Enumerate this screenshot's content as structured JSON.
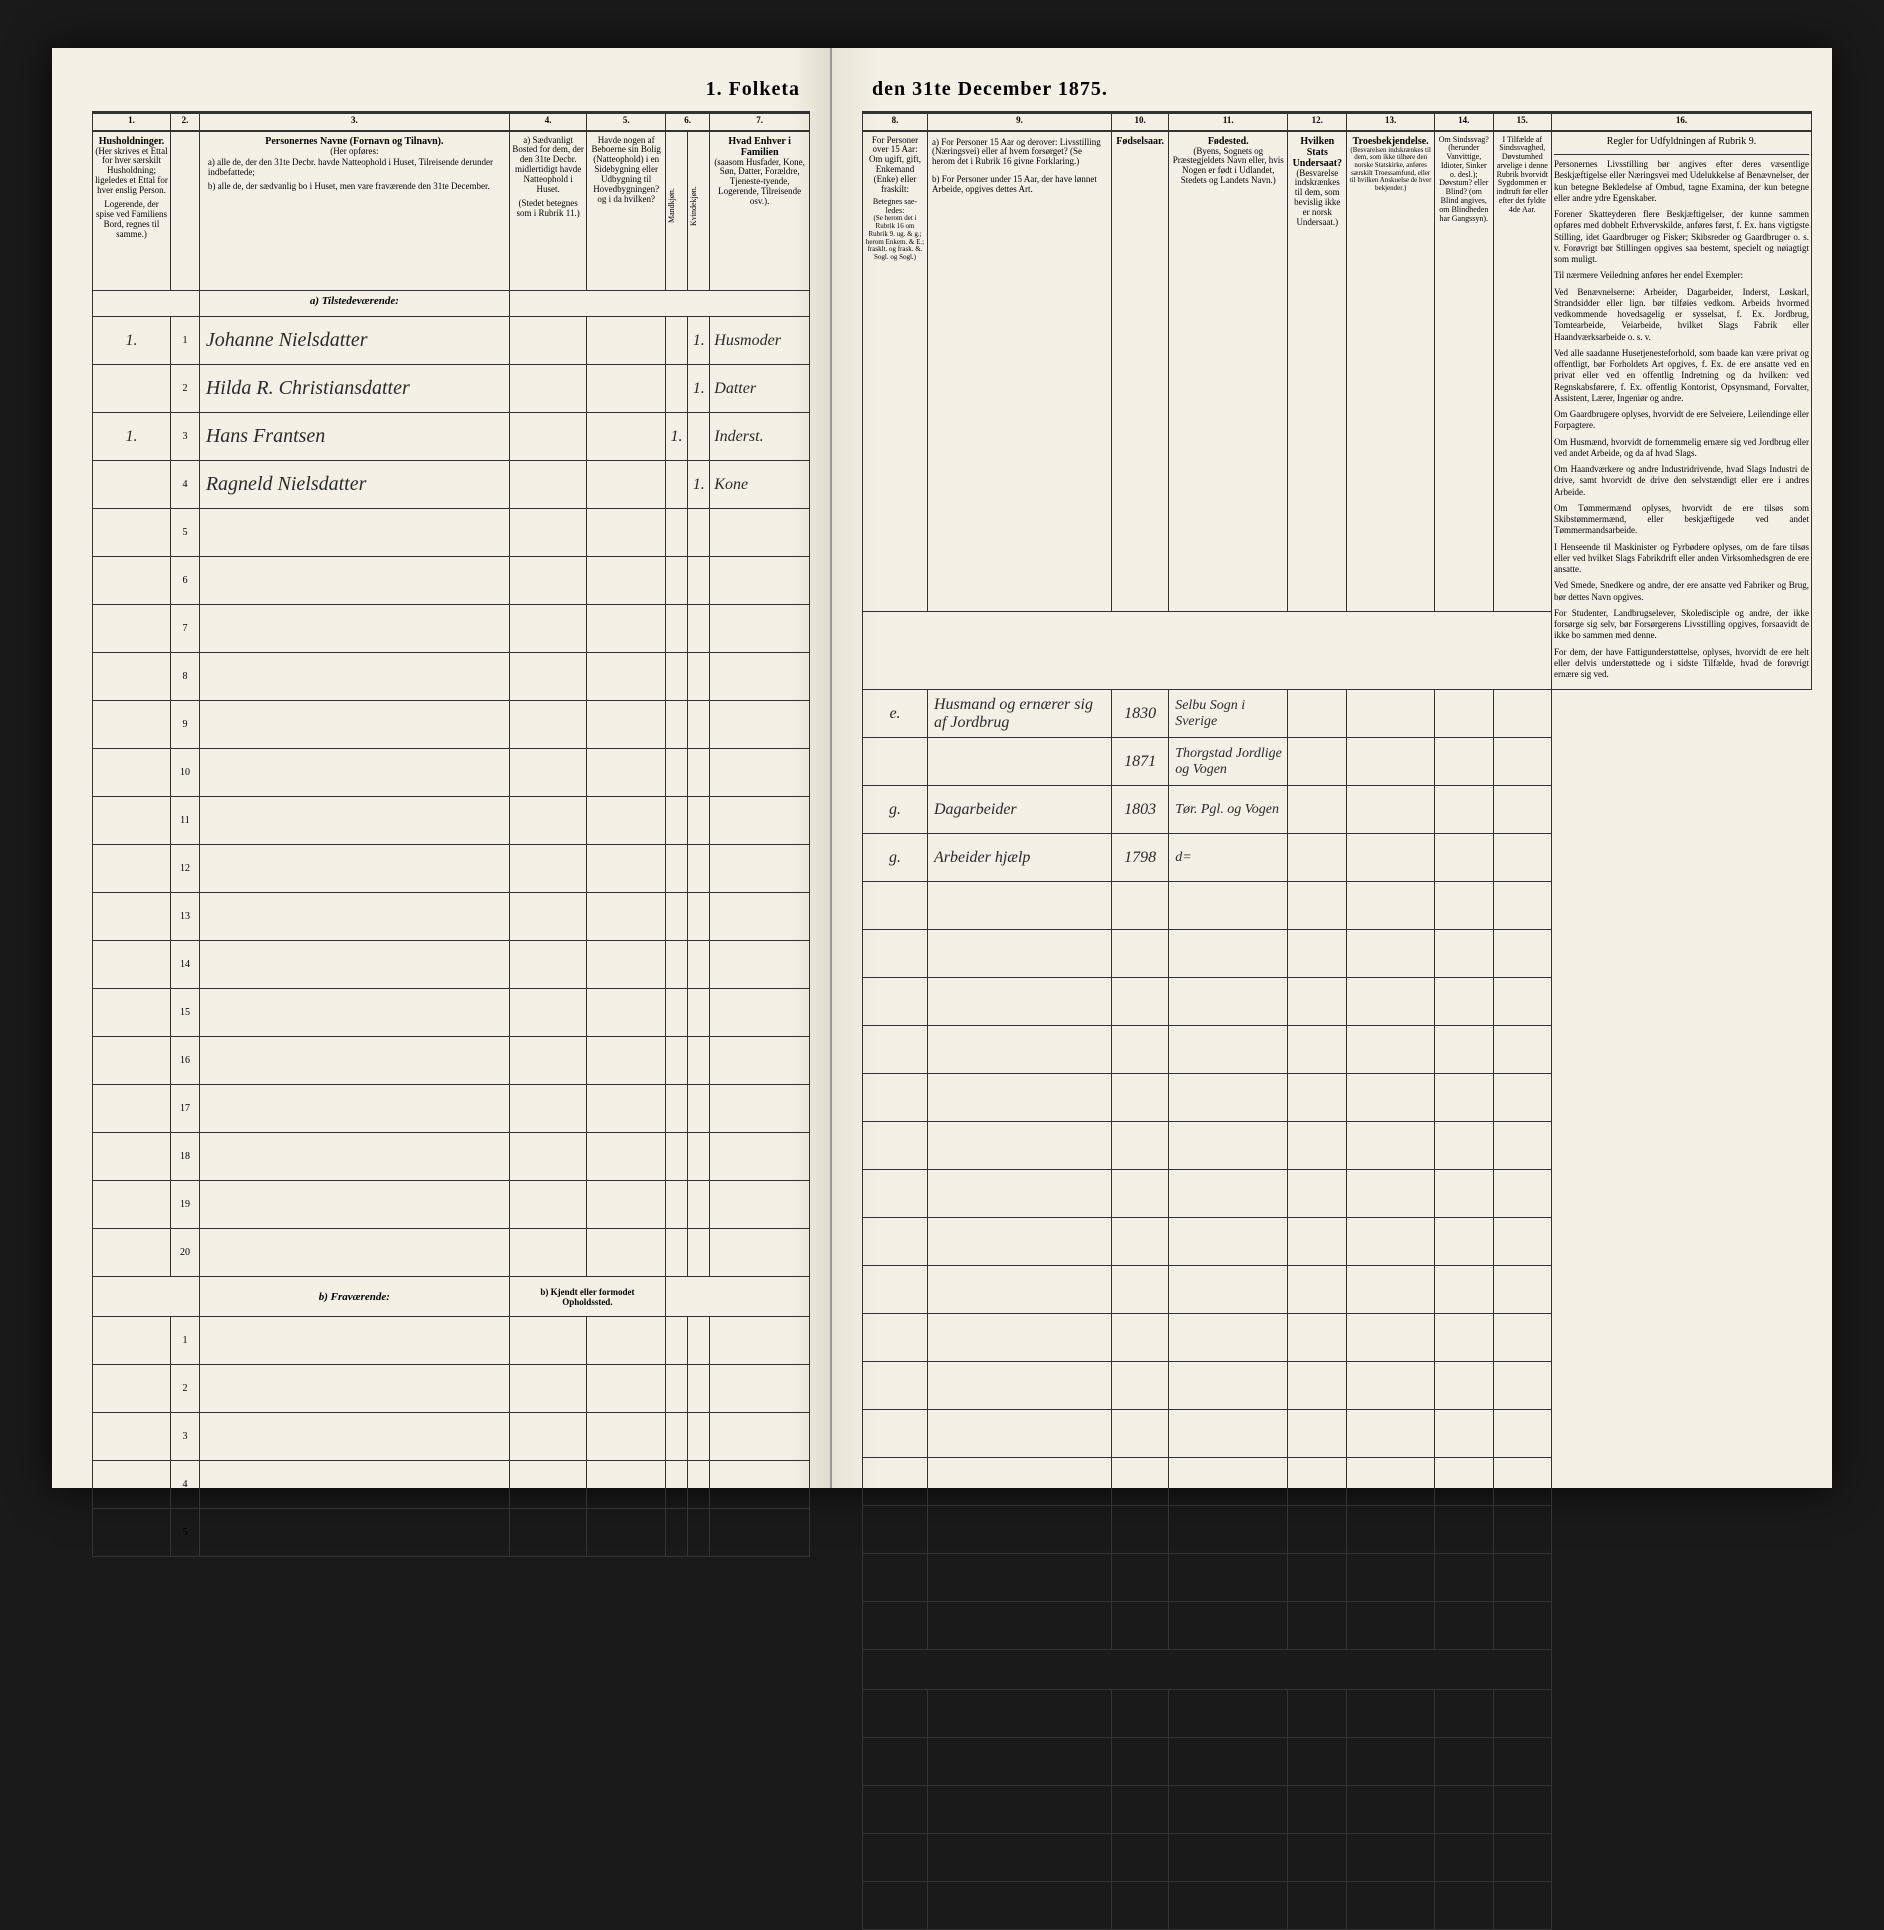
{
  "title_left": "1. Folketa",
  "title_right": "den 31te December 1875.",
  "columns": {
    "c1": "1.",
    "c2": "2.",
    "c3": "3.",
    "c4": "4.",
    "c5": "5.",
    "c6": "6.",
    "c7": "7.",
    "c8": "8.",
    "c9": "9.",
    "c10": "10.",
    "c11": "11.",
    "c12": "12.",
    "c13": "13.",
    "c14": "14.",
    "c15": "15.",
    "c16": "16."
  },
  "headers": {
    "h1": "Husholdninger.",
    "h1b": "(Her skrives et Ettal for hver særskilt Husholdning; ligeledes et Ettal for hver enslig Person.",
    "h1c": "Logerende, der spise ved Familiens Bord, regnes til samme.)",
    "h2": "",
    "h3": "Personernes Navne (Fornavn og Tilnavn).",
    "h3b": "(Her opføres:",
    "h3c": "a) alle de, der den 31te Decbr. havde Natteophold i Huset, Tilreisende derunder indbefattede;",
    "h3d": "b) alle de, der sædvanlig bo i Huset, men vare fraværende den 31te December.",
    "h4": "a) Sædvanligt Bosted for dem, der den 31te Decbr. midlertidigt havde Natteophold i Huset.",
    "h4b": "(Stedet betegnes som i Rubrik 11.)",
    "h5": "Havde nogen af Beboerne sin Bolig (Natteophold) i en Sidebygning eller Udbygning til Hovedbygningen? og i da hvilken?",
    "h6": "Kjøn.",
    "h6a": "Mandkjøn.",
    "h6b": "Kvindekjøn.",
    "h7": "Hvad Enhver i Familien",
    "h7b": "(saasom Husfader, Kone, Søn, Datter, Forældre, Tjeneste-tyende, Logerende, Tilreisende osv.).",
    "h8": "For Personer over 15 Aar: Om ugift, gift, Enkemand (Enke) eller fraskilt:",
    "h8b": "(Se herom det i Rubrik 16 om Rubrik 9. ug. & g.; herom Enkem. & E.; frasklt. og frask. &. Sogl. og Sogl.)",
    "h8c": "Betegnes sae-ledes:",
    "h9": "a) For Personer 15 Aar og derover: Livsstilling (Næringsvei) eller af hvem forsørget? (Se herom det i Rubrik 16 givne Forklaring.)",
    "h9b": "b) For Personer under 15 Aar, der have lønnet Arbeide, opgives dettes Art.",
    "h10": "Fødselsaar.",
    "h11": "Fødested.",
    "h11b": "(Byens, Sognets og Præstegjeldets Navn eller, hvis Nogen er født i Udlandet, Stedets og Landets Navn.)",
    "h12": "Hvilken Stats Undersaat?",
    "h12b": "(Besvarelse indskrænkes til dem, som bevislig ikke er norsk Undersaat.)",
    "h13": "Troesbekjendelse.",
    "h13b": "(Besvarelsen indskrænkes til dem, som ikke tilhøre den norske Statskirke, anføres særskilt Troessamfund, eller til hvilken Anskuelse de hver bekjender.)",
    "h14": "Om Sindssvag? (herunder Vanvittige, Idioter, Sinker o. desl.); Døvstum? eller Blind? (om Blind angives, om Blindheden har Gangssyn).",
    "h15": "I Tilfælde af Sindssvaghed, Døvstumhed arvelige i denne Rubrik hvorvidt Sygdommen er indtruft før eller efter det fyldte 4de Aar.",
    "h16": "Regler for Udfyldningen af Rubrik 9."
  },
  "section_a": "a) Tilstedeværende:",
  "section_b": "b) Fraværende:",
  "section_b2": "b) Kjendt eller formodet Opholdssted.",
  "rows": [
    {
      "n": "1",
      "hh": "1.",
      "name": "Johanne Nielsdatter",
      "col6": "1.",
      "col7": "Husmoder",
      "col8": "e.",
      "col9": "Husmand og ernærer sig af Jordbrug",
      "year": "1830",
      "place": "Selbu Sogn i Sverige"
    },
    {
      "n": "2",
      "hh": "",
      "name": "Hilda R. Christiansdatter",
      "col6": "1.",
      "col7": "Datter",
      "col8": "",
      "col9": "",
      "year": "1871",
      "place": "Thorgstad Jordlige og Vogen"
    },
    {
      "n": "3",
      "hh": "1.",
      "name": "Hans Frantsen",
      "col6": "1.",
      "col7": "Inderst.",
      "col8": "g.",
      "col9": "Dagarbeider",
      "year": "1803",
      "place": "Tør. Pgl. og Vogen"
    },
    {
      "n": "4",
      "hh": "",
      "name": "Ragneld Nielsdatter",
      "col6": "1.",
      "col7": "Kone",
      "col8": "g.",
      "col9": "Arbeider hjælp",
      "year": "1798",
      "place": "d="
    },
    {
      "n": "5"
    },
    {
      "n": "6"
    },
    {
      "n": "7"
    },
    {
      "n": "8"
    },
    {
      "n": "9"
    },
    {
      "n": "10"
    },
    {
      "n": "11"
    },
    {
      "n": "12"
    },
    {
      "n": "13"
    },
    {
      "n": "14"
    },
    {
      "n": "15"
    },
    {
      "n": "16"
    },
    {
      "n": "17"
    },
    {
      "n": "18"
    },
    {
      "n": "19"
    },
    {
      "n": "20"
    }
  ],
  "blank_rows": [
    "1",
    "2",
    "3",
    "4",
    "5"
  ],
  "instructions": {
    "title": "Personernes Livsstilling bør angives efter deres væsentlige Beskjæftigelse eller Næringsvei med Udelukkelse af Benævnelser, der kun betegne Bekledelse af Ombud, tagne Examina, der kun betegne eller andre ydre Egenskaber.",
    "p1": "Forener Skatteyderen flere Beskjæftigelser, der kunne sammen opføres med dobbelt Erhvervskilde, anføres først, f. Ex. hans vigtigste Stilling, idet Gaardbruger og Fisker; Skibsreder og Gaardbruger o. s. v. Forøvrigt bør Stillingen opgives saa bestemt, specielt og nøiagtigt som muligt.",
    "p2": "Til nærmere Veiledning anføres her endel Exempler:",
    "p3": "Ved Benævnelserne: Arbeider, Dagarbeider, Inderst, Løskarl, Strandsidder eller lign. bør tilføies vedkom. Arbeids hvormed vedkommende hovedsagelig er sysselsat, f. Ex. Jordbrug, Tomtearbeide, Veiarbeide, hvilket Slags Fabrik eller Haandværksarbeide o. s. v.",
    "p4": "Ved alle saadanne Husetjenesteforhold, som baade kan være privat og offentligt, bør Forholdets Art opgives, f. Ex. de ere ansatte ved en privat eller ved en offentlig Indretning og da hvilken: ved Regnskabsførere, f. Ex. offentlig Kontorist, Opsynsmand, Forvalter, Assistent, Lærer, Ingeniør og andre.",
    "p5": "Om Gaardbrugere oplyses, hvorvidt de ere Selveiere, Leilendinge eller Forpagtere.",
    "p6": "Om Husmænd, hvorvidt de fornemmelig ernære sig ved Jordbrug eller ved andet Arbeide, og da af hvad Slags.",
    "p7": "Om Haandværkere og andre Industridrivende, hvad Slags Industri de drive, samt hvorvidt de drive den selvstændigt eller ere i andres Arbeide.",
    "p8": "Om Tømmermænd oplyses, hvorvidt de ere tilsøs som Skibstømmermænd, eller beskjæftigede ved andet Tømmermandsarbeide.",
    "p9": "I Henseende til Maskinister og Fyrbødere oplyses, om de fare tilsøs eller ved hvilket Slags Fabrikdrift eller anden Virksomhedsgren de ere ansatte.",
    "p10": "Ved Smede, Snedkere og andre, der ere ansatte ved Fabriker og Brug, bør dettes Navn opgives.",
    "p11": "For Studenter, Landbrugselever, Skoledisciple og andre, der ikke forsørge sig selv, bør Forsørgerens Livsstilling opgives, forsaavidt de ikke bo sammen med denne.",
    "p12": "For dem, der have Fattigunderstøttelse, oplyses, hvorvidt de ere helt eller delvis understøttede og i sidste Tilfælde, hvad de forøvrigt ernære sig ved."
  }
}
